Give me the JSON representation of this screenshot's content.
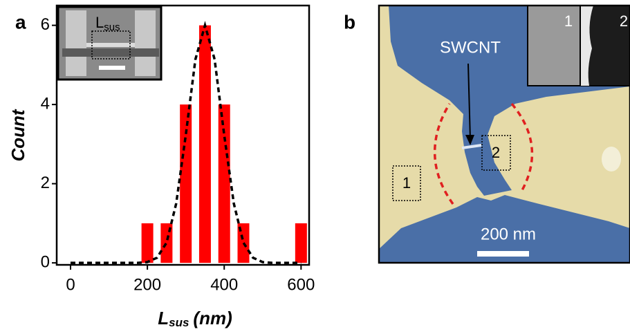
{
  "chart_data": {
    "type": "bar",
    "panel_label": "a",
    "ylabel": "Count",
    "xlabel": {
      "main": "L",
      "sub": "sus",
      "unit": "(nm)"
    },
    "inset_label": {
      "main": "L",
      "sub": "sus"
    },
    "x": [
      200,
      250,
      300,
      350,
      400,
      450,
      600
    ],
    "values": [
      1,
      1,
      4,
      6,
      4,
      1,
      1
    ],
    "color": "#ff0000",
    "fit": {
      "x": [
        0,
        50,
        100,
        150,
        175,
        200,
        225,
        250,
        275,
        300,
        325,
        350,
        375,
        400,
        425,
        450,
        475,
        500,
        525,
        550,
        600
      ],
      "values": [
        0,
        0,
        0,
        0,
        0,
        0.02,
        0.13,
        0.51,
        1.5,
        3.23,
        5.14,
        6,
        5.14,
        3.23,
        1.5,
        0.51,
        0.13,
        0.02,
        0,
        0,
        0
      ]
    },
    "xlim": [
      -36,
      621
    ],
    "ylim": [
      -0.05,
      6.5
    ],
    "xticks": [
      0,
      200,
      400,
      600
    ],
    "yticks": [
      0,
      2,
      4,
      6
    ]
  },
  "panel_b": {
    "panel_label": "b",
    "nanotube_label": "SWCNT",
    "region_1": "1",
    "region_2": "2",
    "scale_bar": "200 nm",
    "inset_1": "1",
    "inset_2": "2"
  }
}
